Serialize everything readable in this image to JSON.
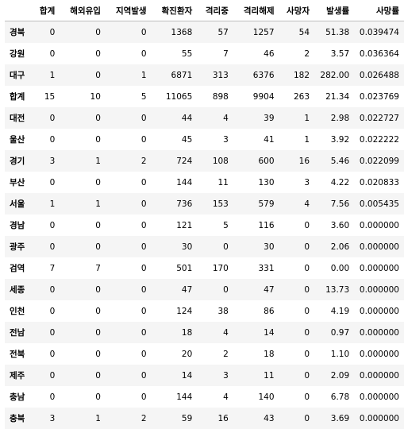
{
  "table": {
    "columns": [
      "합계",
      "해외유입",
      "지역발생",
      "확진환자",
      "격리중",
      "격리해제",
      "사망자",
      "발생률",
      "사망률"
    ],
    "rows": [
      {
        "label": "경북",
        "values": [
          "0",
          "0",
          "0",
          "1368",
          "57",
          "1257",
          "54",
          "51.38",
          "0.039474"
        ]
      },
      {
        "label": "강원",
        "values": [
          "0",
          "0",
          "0",
          "55",
          "7",
          "46",
          "2",
          "3.57",
          "0.036364"
        ]
      },
      {
        "label": "대구",
        "values": [
          "1",
          "0",
          "1",
          "6871",
          "313",
          "6376",
          "182",
          "282.00",
          "0.026488"
        ]
      },
      {
        "label": "합계",
        "values": [
          "15",
          "10",
          "5",
          "11065",
          "898",
          "9904",
          "263",
          "21.34",
          "0.023769"
        ]
      },
      {
        "label": "대전",
        "values": [
          "0",
          "0",
          "0",
          "44",
          "4",
          "39",
          "1",
          "2.98",
          "0.022727"
        ]
      },
      {
        "label": "울산",
        "values": [
          "0",
          "0",
          "0",
          "45",
          "3",
          "41",
          "1",
          "3.92",
          "0.022222"
        ]
      },
      {
        "label": "경기",
        "values": [
          "3",
          "1",
          "2",
          "724",
          "108",
          "600",
          "16",
          "5.46",
          "0.022099"
        ]
      },
      {
        "label": "부산",
        "values": [
          "0",
          "0",
          "0",
          "144",
          "11",
          "130",
          "3",
          "4.22",
          "0.020833"
        ]
      },
      {
        "label": "서울",
        "values": [
          "1",
          "1",
          "0",
          "736",
          "153",
          "579",
          "4",
          "7.56",
          "0.005435"
        ]
      },
      {
        "label": "경남",
        "values": [
          "0",
          "0",
          "0",
          "121",
          "5",
          "116",
          "0",
          "3.60",
          "0.000000"
        ]
      },
      {
        "label": "광주",
        "values": [
          "0",
          "0",
          "0",
          "30",
          "0",
          "30",
          "0",
          "2.06",
          "0.000000"
        ]
      },
      {
        "label": "검역",
        "values": [
          "7",
          "7",
          "0",
          "501",
          "170",
          "331",
          "0",
          "0.00",
          "0.000000"
        ]
      },
      {
        "label": "세종",
        "values": [
          "0",
          "0",
          "0",
          "47",
          "0",
          "47",
          "0",
          "13.73",
          "0.000000"
        ]
      },
      {
        "label": "인천",
        "values": [
          "0",
          "0",
          "0",
          "124",
          "38",
          "86",
          "0",
          "4.19",
          "0.000000"
        ]
      },
      {
        "label": "전남",
        "values": [
          "0",
          "0",
          "0",
          "18",
          "4",
          "14",
          "0",
          "0.97",
          "0.000000"
        ]
      },
      {
        "label": "전북",
        "values": [
          "0",
          "0",
          "0",
          "20",
          "2",
          "18",
          "0",
          "1.10",
          "0.000000"
        ]
      },
      {
        "label": "제주",
        "values": [
          "0",
          "0",
          "0",
          "14",
          "3",
          "11",
          "0",
          "2.09",
          "0.000000"
        ]
      },
      {
        "label": "충남",
        "values": [
          "0",
          "0",
          "0",
          "144",
          "4",
          "140",
          "0",
          "6.78",
          "0.000000"
        ]
      },
      {
        "label": "충북",
        "values": [
          "3",
          "1",
          "2",
          "59",
          "16",
          "43",
          "0",
          "3.69",
          "0.000000"
        ]
      }
    ]
  }
}
